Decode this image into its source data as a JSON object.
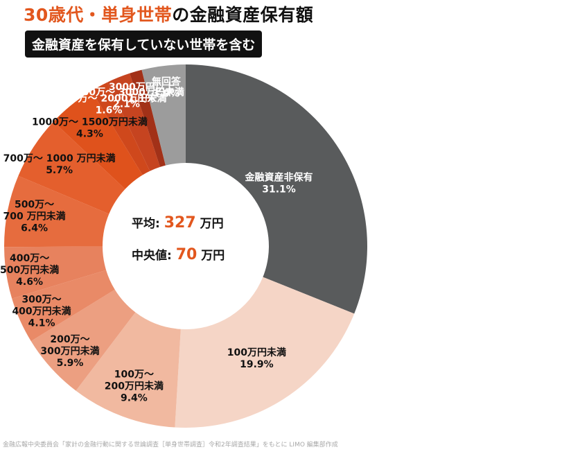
{
  "header": {
    "title_accent": "30歳代・単身世帯",
    "title_rest": "の金融資産保有額",
    "badge": "金融資産を保有していない世帯を含む"
  },
  "center": {
    "average_label": "平均",
    "average_value": "327",
    "median_label": "中央値",
    "median_value": "70",
    "unit": "万円"
  },
  "source": "金融広報中央委員会「家計の金融行動に関する世論調査［単身世帯調査］令和2年調査結果」をもとに LIMO 編集部作成",
  "chart_data": {
    "type": "pie",
    "categories": [
      "金融資産非保有",
      "100万円未満",
      "100万〜200万円未満",
      "200万〜300万円未満",
      "300万〜400万円未満",
      "400万〜500万円未満",
      "500万〜700万円未満",
      "700万〜1000万円未満",
      "1000万〜1500万円未満",
      "1500万〜2000万円未満",
      "2000万〜3000万円未満",
      "3000万円以上",
      "無回答"
    ],
    "values": [
      31.1,
      19.9,
      9.4,
      5.9,
      4.1,
      4.6,
      6.4,
      5.7,
      4.3,
      1.6,
      2.1,
      1.1,
      3.9
    ],
    "value_labels": [
      "31.1%",
      "19.9%",
      "9.4%",
      "5.9%",
      "4.1%",
      "4.6%",
      "6.4%",
      "5.7%",
      "4.3%",
      "1.6%",
      "2.1%",
      "1.1%",
      "3.9%"
    ],
    "label_lines": [
      [
        "金融資産非保有"
      ],
      [
        "100万円未満"
      ],
      [
        "100万〜",
        "200万円未満"
      ],
      [
        "200万〜",
        "300万円未満"
      ],
      [
        "300万〜",
        "400万円未満"
      ],
      [
        "400万〜",
        "500万円未満"
      ],
      [
        "500万〜",
        "700 万円未満"
      ],
      [
        "700万〜 1000 万円未満"
      ],
      [
        "1000万〜 1500万円未満"
      ],
      [
        "1500万〜 2000万円未満"
      ],
      [
        "2000万〜 3000万円未満"
      ],
      [
        "3000万円以上"
      ],
      [
        "無回答"
      ]
    ],
    "colors": [
      "#595b5c",
      "#f5d5c6",
      "#f1b9a0",
      "#ec9f81",
      "#e98a67",
      "#e7825e",
      "#e66c3e",
      "#e45f2d",
      "#df521c",
      "#cf481c",
      "#c64420",
      "#a23118",
      "#9c9c9c"
    ],
    "label_colors": [
      "#ffffff",
      "#111111",
      "#111111",
      "#111111",
      "#111111",
      "#111111",
      "#111111",
      "#111111",
      "#111111",
      "#ffffff",
      "#ffffff",
      "#ffffff",
      "#ffffff"
    ]
  }
}
